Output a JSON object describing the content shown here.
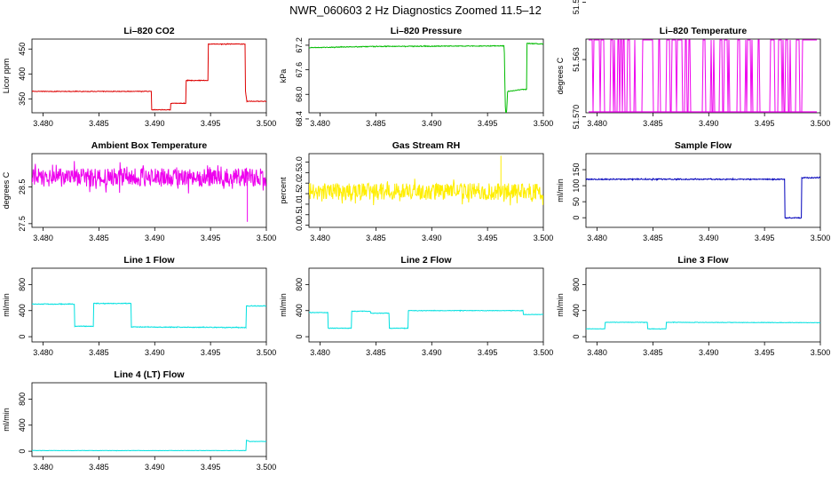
{
  "page": {
    "title": "NWR_060603  2 Hz Diagnostics Zoomed 11.5–12"
  },
  "chart_data": [
    {
      "type": "line",
      "title": "Li–820 CO2",
      "ylabel": "Licor ppm",
      "xlim": [
        3.479,
        3.5
      ],
      "ylim": [
        322,
        470
      ],
      "xticks": [
        "3.480",
        "3.485",
        "3.490",
        "3.495",
        "3.500"
      ],
      "yticks": [
        "350",
        "400",
        "450"
      ],
      "color": "#dd0000",
      "noise": 0.6,
      "series": [
        {
          "x": [
            3.4789,
            3.4897,
            3.4897,
            3.4914,
            3.4914,
            3.4928,
            3.4928,
            3.4948,
            3.4948,
            3.4981,
            3.4981,
            3.49825,
            3.5
          ],
          "y": [
            365,
            365,
            328,
            328,
            341,
            341,
            387,
            387,
            460,
            460,
            372,
            345,
            345
          ]
        }
      ]
    },
    {
      "type": "line",
      "title": "Li–820 Pressure",
      "ylabel": "kPa",
      "xlim": [
        3.479,
        3.5
      ],
      "ylim": [
        68.3,
        67.1
      ],
      "xticks": [
        "3.480",
        "3.485",
        "3.490",
        "3.495",
        "3.500"
      ],
      "yticks": [
        "67.2",
        "67.6",
        "68.0",
        "68.4"
      ],
      "color": "#00bb00",
      "noise": 0.006,
      "series": [
        {
          "x": [
            3.4789,
            3.485,
            3.4965,
            3.4966,
            3.4967,
            3.4968,
            3.4982,
            3.4985,
            3.4985,
            3.5
          ],
          "y": [
            67.24,
            67.22,
            67.21,
            68.3,
            68.3,
            67.95,
            67.92,
            67.92,
            67.17,
            67.18
          ]
        }
      ]
    },
    {
      "type": "line",
      "title": "Li–820 Temperature",
      "ylabel": "degrees C",
      "xlim": [
        3.479,
        3.5
      ],
      "ylim": [
        51.5695,
        51.5605
      ],
      "xticks": [
        "3.480",
        "3.485",
        "3.490",
        "3.495",
        "3.500"
      ],
      "yticks": [
        "51.556",
        "51.563",
        "51.570"
      ],
      "color": "#ee00ee",
      "pattern": "toggle",
      "seed": 7,
      "series": [
        {
          "x": [
            3.4789,
            3.5
          ],
          "y": [
            51.5695,
            51.5605
          ]
        }
      ]
    },
    {
      "type": "line",
      "title": "Ambient Box Temperature",
      "ylabel": "degrees C",
      "xlim": [
        3.479,
        3.5
      ],
      "ylim": [
        27.4,
        29.4
      ],
      "xticks": [
        "3.480",
        "3.485",
        "3.490",
        "3.495",
        "3.500"
      ],
      "yticks": [
        "27.5",
        "28.5"
      ],
      "color": "#ee00ee",
      "noise": 0.25,
      "seed": 11,
      "spike": [
        3.4983,
        27.55
      ],
      "series": [
        {
          "x": [
            3.4789,
            3.5
          ],
          "y": [
            28.75,
            28.75
          ]
        }
      ]
    },
    {
      "type": "line",
      "title": "Gas Stream RH",
      "ylabel": "percent",
      "xlim": [
        3.479,
        3.5
      ],
      "ylim": [
        -0.1,
        3.4
      ],
      "xticks": [
        "3.480",
        "3.485",
        "3.490",
        "3.495",
        "3.500"
      ],
      "yticks": [
        "0.0",
        "0.5",
        "1.0",
        "1.5",
        "2.0",
        "2.5",
        "3.0"
      ],
      "color": "#ffee00",
      "noise": 0.4,
      "seed": 23,
      "spike": [
        3.4962,
        3.3
      ],
      "series": [
        {
          "x": [
            3.4789,
            3.5
          ],
          "y": [
            1.6,
            1.6
          ]
        }
      ]
    },
    {
      "type": "line",
      "title": "Sample Flow",
      "ylabel": "ml/min",
      "xlim": [
        3.479,
        3.5
      ],
      "ylim": [
        -30,
        200
      ],
      "xticks": [
        "3.480",
        "3.485",
        "3.490",
        "3.495",
        "3.500"
      ],
      "yticks": [
        "0",
        "50",
        "100",
        "150"
      ],
      "color": "#0000bb",
      "noise": 1.5,
      "series": [
        {
          "x": [
            3.4789,
            3.4968,
            3.4968,
            3.4983,
            3.4983,
            3.5
          ],
          "y": [
            120,
            120,
            0,
            0,
            125,
            125
          ]
        }
      ]
    },
    {
      "type": "line",
      "title": "Line 1 Flow",
      "ylabel": "ml/min",
      "xlim": [
        3.479,
        3.5
      ],
      "ylim": [
        -80,
        1050
      ],
      "xticks": [
        "3.480",
        "3.485",
        "3.490",
        "3.495",
        "3.500"
      ],
      "yticks": [
        "0",
        "400",
        "800"
      ],
      "color": "#00e0e0",
      "noise": 5,
      "series": [
        {
          "x": [
            3.4789,
            3.4828,
            3.4828,
            3.4845,
            3.4845,
            3.4879,
            3.4879,
            3.4982,
            3.4982,
            3.5
          ],
          "y": [
            500,
            500,
            160,
            160,
            510,
            510,
            150,
            140,
            470,
            470
          ]
        }
      ]
    },
    {
      "type": "line",
      "title": "Line 2 Flow",
      "ylabel": "ml/min",
      "xlim": [
        3.479,
        3.5
      ],
      "ylim": [
        -80,
        1050
      ],
      "xticks": [
        "3.480",
        "3.485",
        "3.490",
        "3.495",
        "3.500"
      ],
      "yticks": [
        "0",
        "400",
        "800"
      ],
      "color": "#00e0e0",
      "noise": 4,
      "series": [
        {
          "x": [
            3.4789,
            3.4807,
            3.4807,
            3.4828,
            3.4828,
            3.4845,
            3.4845,
            3.4862,
            3.4862,
            3.4879,
            3.4879,
            3.4982,
            3.4982,
            3.5
          ],
          "y": [
            370,
            370,
            130,
            130,
            390,
            390,
            360,
            360,
            130,
            130,
            400,
            400,
            340,
            340
          ]
        }
      ]
    },
    {
      "type": "line",
      "title": "Line 3 Flow",
      "ylabel": "ml/min",
      "xlim": [
        3.479,
        3.5
      ],
      "ylim": [
        -80,
        1050
      ],
      "xticks": [
        "3.480",
        "3.485",
        "3.490",
        "3.495",
        "3.500"
      ],
      "yticks": [
        "0",
        "400",
        "800"
      ],
      "color": "#00e0e0",
      "noise": 3,
      "series": [
        {
          "x": [
            3.4789,
            3.4807,
            3.4807,
            3.4845,
            3.4845,
            3.4862,
            3.4862,
            3.5
          ],
          "y": [
            120,
            120,
            220,
            220,
            120,
            120,
            220,
            215
          ]
        }
      ]
    },
    {
      "type": "line",
      "title": "Line 4 (LT) Flow",
      "ylabel": "ml/min",
      "xlim": [
        3.479,
        3.5
      ],
      "ylim": [
        -80,
        1050
      ],
      "xticks": [
        "3.480",
        "3.485",
        "3.490",
        "3.495",
        "3.500"
      ],
      "yticks": [
        "0",
        "400",
        "800"
      ],
      "color": "#00e0e0",
      "noise": 2,
      "series": [
        {
          "x": [
            3.4789,
            3.4982,
            3.4982,
            3.4985,
            3.5
          ],
          "y": [
            10,
            10,
            170,
            150,
            150
          ]
        }
      ]
    }
  ]
}
